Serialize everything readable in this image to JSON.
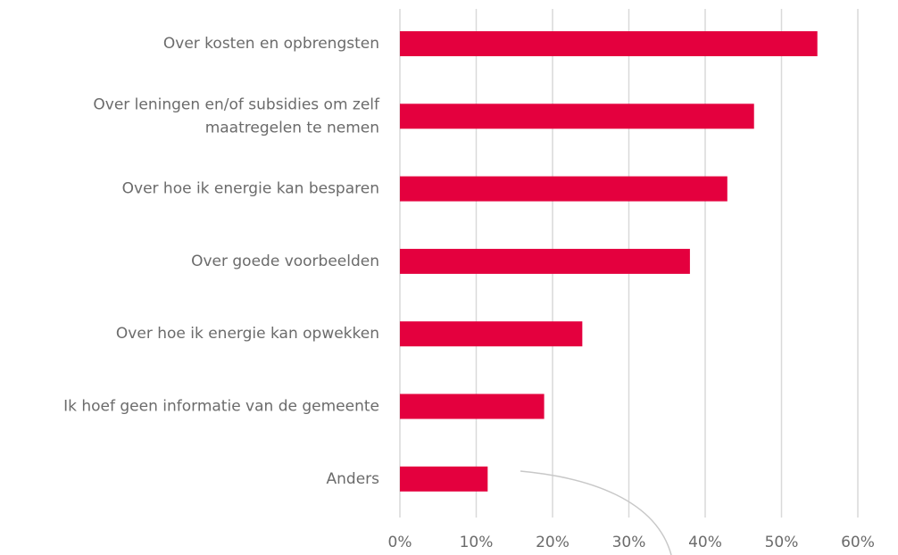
{
  "chart_data": {
    "type": "bar",
    "orientation": "horizontal",
    "categories": [
      "Over kosten en opbrengsten",
      "Over leningen en/of subsidies om zelf maatregelen te nemen",
      "Over hoe ik energie kan besparen",
      "Over goede voorbeelden",
      "Over hoe ik energie kan opwekken",
      "Ik hoef geen informatie van de gemeente",
      "Anders"
    ],
    "values": [
      54.7,
      46.4,
      42.9,
      38.0,
      23.9,
      18.9,
      11.5
    ],
    "color": "#e4003e",
    "xlim": [
      0,
      60
    ],
    "xticks": [
      {
        "value": 0,
        "label": "0%"
      },
      {
        "value": 10,
        "label": "10%"
      },
      {
        "value": 20,
        "label": "20%"
      },
      {
        "value": 30,
        "label": "30%"
      },
      {
        "value": 40,
        "label": "40%"
      },
      {
        "value": 50,
        "label": "50%"
      },
      {
        "value": 60,
        "label": "60%"
      }
    ],
    "grid": true
  }
}
